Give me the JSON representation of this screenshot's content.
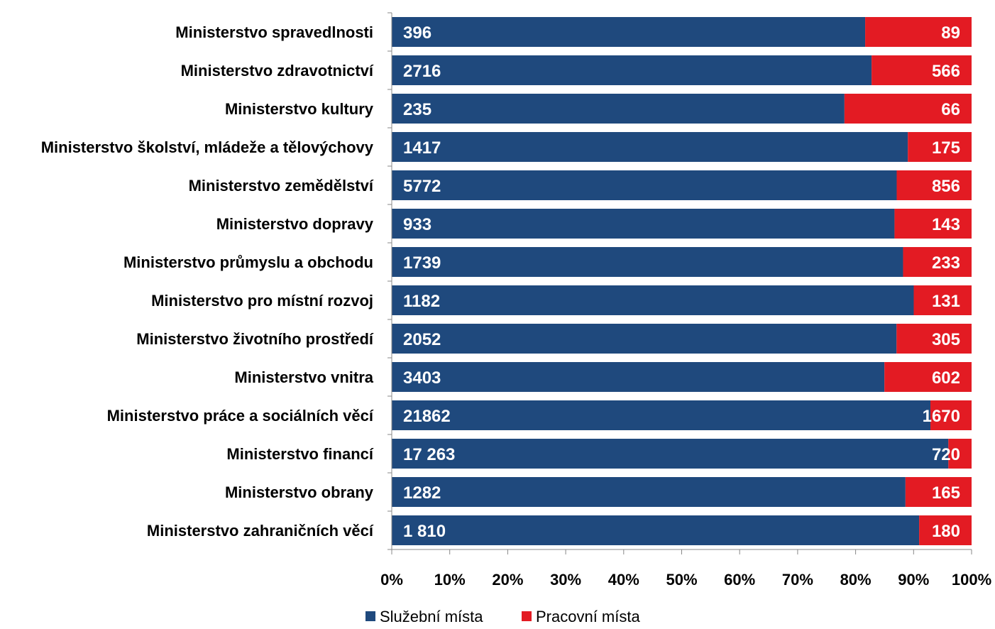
{
  "chart_data": {
    "type": "bar",
    "orientation": "horizontal",
    "stacking": "percent",
    "categories": [
      "Ministerstvo spravedlnosti",
      "Ministerstvo zdravotnictví",
      "Ministerstvo kultury",
      "Ministerstvo školství, mládeže a tělovýchovy",
      "Ministerstvo zemědělství",
      "Ministerstvo dopravy",
      "Ministerstvo průmyslu a obchodu",
      "Ministerstvo pro místní rozvoj",
      "Ministerstvo životního prostředí",
      "Ministerstvo vnitra",
      "Ministerstvo práce a sociálních věcí",
      "Ministerstvo financí",
      "Ministerstvo obrany",
      "Ministerstvo zahraničních věcí"
    ],
    "series": [
      {
        "name": "Služební místa",
        "color": "#1F497D",
        "values": [
          396,
          2716,
          235,
          1417,
          5772,
          933,
          1739,
          1182,
          2052,
          3403,
          21862,
          17263,
          1282,
          1810
        ],
        "value_labels": [
          "396",
          "2716",
          "235",
          "1417",
          "5772",
          "933",
          "1739",
          "1182",
          "2052",
          "3403",
          "21862",
          "17 263",
          "1282",
          "1 810"
        ]
      },
      {
        "name": "Pracovní místa",
        "color": "#E31B23",
        "values": [
          89,
          566,
          66,
          175,
          856,
          143,
          233,
          131,
          305,
          602,
          1670,
          720,
          165,
          180
        ],
        "value_labels": [
          "89",
          "566",
          "66",
          "175",
          "856",
          "143",
          "233",
          "131",
          "305",
          "602",
          "1670",
          "720",
          "165",
          "180"
        ]
      }
    ],
    "x_ticks": [
      "0%",
      "10%",
      "20%",
      "30%",
      "40%",
      "50%",
      "60%",
      "70%",
      "80%",
      "90%",
      "100%"
    ],
    "xlim": [
      0,
      100
    ],
    "grid": false,
    "legend_position": "bottom"
  }
}
